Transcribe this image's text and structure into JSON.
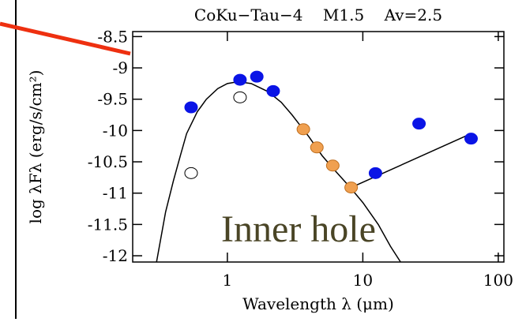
{
  "chart_data": {
    "type": "sed",
    "title": "CoKu−Tau−4    M1.5    Av=2.5",
    "x_label": "Wavelength λ (μm)",
    "y_label": "log λFλ (erg/s/cm²)",
    "annotation": "Inner hole",
    "x_scale": "log",
    "xlim": [
      0.2,
      110
    ],
    "ylim": [
      -12.1,
      -8.42
    ],
    "xticks": [
      1,
      10,
      100
    ],
    "yticks": [
      -8.5,
      -9.0,
      -9.5,
      -10.0,
      -10.5,
      -11.0,
      -11.5,
      -12.0
    ],
    "series": [
      {
        "type": "line",
        "color": "#000000",
        "x": [
          0.3,
          0.35,
          0.4,
          0.45,
          0.5,
          0.6,
          0.7,
          0.85,
          1.0,
          1.2,
          1.5,
          2.0,
          2.5,
          3.0,
          4.0,
          5.0,
          6.0,
          8.0,
          10,
          13,
          16,
          19
        ],
        "values": [
          -12.1,
          -11.3,
          -10.8,
          -10.4,
          -10.05,
          -9.7,
          -9.5,
          -9.33,
          -9.25,
          -9.22,
          -9.25,
          -9.38,
          -9.55,
          -9.75,
          -10.1,
          -10.4,
          -10.6,
          -10.9,
          -11.15,
          -11.5,
          -11.85,
          -12.1
        ]
      },
      {
        "type": "line",
        "color": "#000000",
        "x": [
          8.2,
          63
        ],
        "values": [
          -10.91,
          -10.05
        ]
      },
      {
        "type": "scatter",
        "color": "#0a14e6",
        "edgecolor": "#0a14e6",
        "x": [
          0.54,
          1.24,
          1.65,
          2.18,
          12.4,
          26,
          63
        ],
        "values": [
          -9.63,
          -9.19,
          -9.14,
          -9.37,
          -10.68,
          -9.89,
          -10.13
        ]
      },
      {
        "type": "scatter",
        "color": "#ffffff",
        "edgecolor": "#000000",
        "x": [
          0.54,
          1.24
        ],
        "values": [
          -10.68,
          -9.47
        ]
      },
      {
        "type": "scatter",
        "color": "#f0a050",
        "edgecolor": "#c07020",
        "x": [
          3.64,
          4.58,
          6.0,
          8.2
        ],
        "values": [
          -9.98,
          -10.27,
          -10.56,
          -10.91
        ]
      }
    ]
  }
}
